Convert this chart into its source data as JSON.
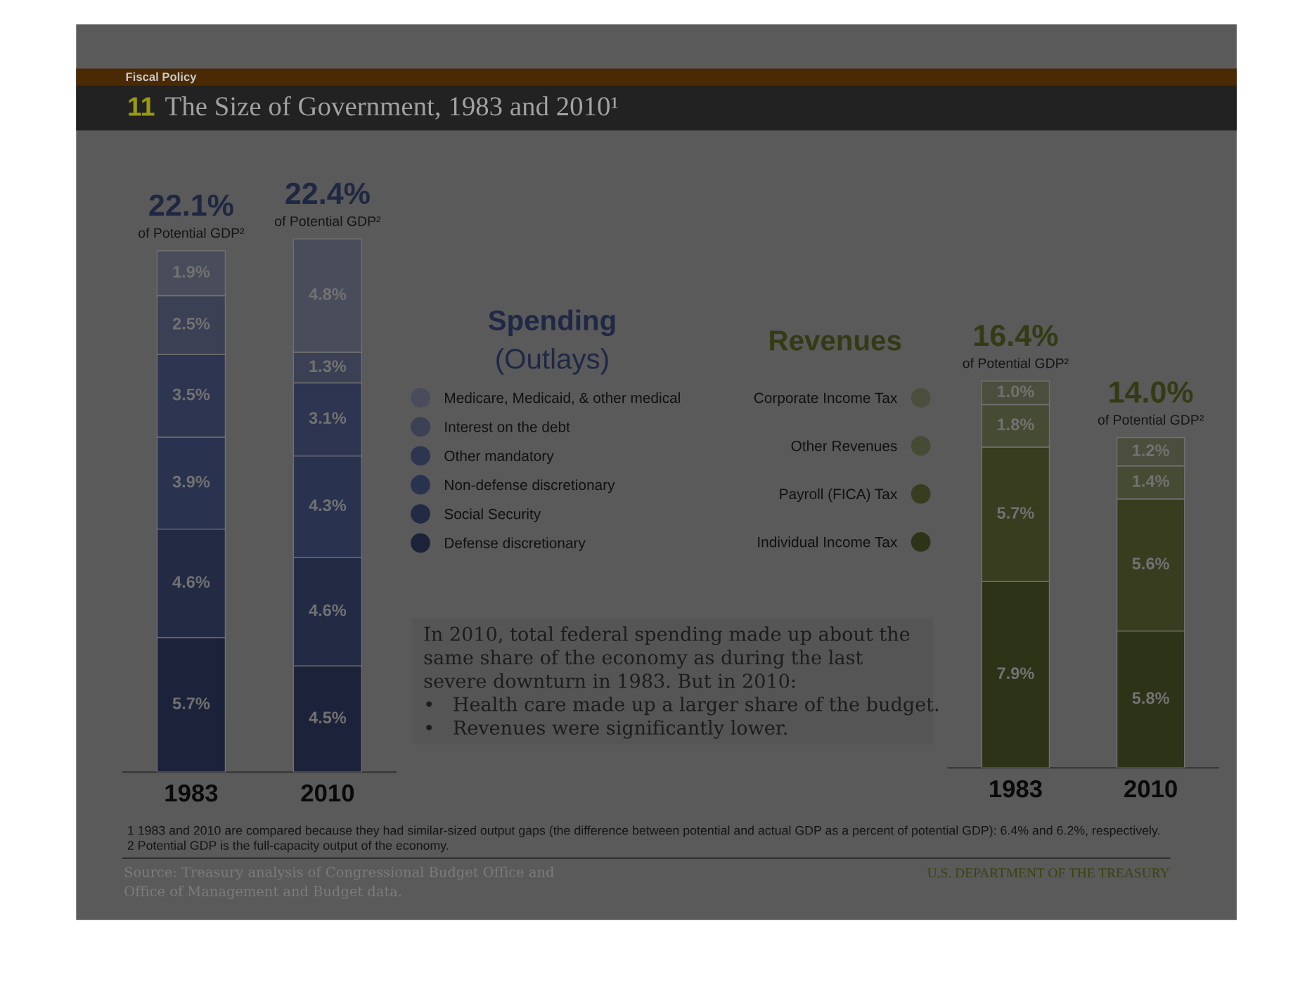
{
  "chart_data": [
    {
      "type": "bar",
      "stacked": true,
      "title": "11 The Size of Government, 1983 and 2010¹",
      "subtitle": "Fiscal Policy",
      "legend_title": "Spending (Outlays)",
      "legend": "right",
      "tick_labels": "x",
      "categories": [
        "1983",
        "2010"
      ],
      "series": [
        {
          "name": "Defense discretionary",
          "color": "#1c2239",
          "values": [
            5.7,
            4.5
          ],
          "value_labels": [
            "5.7%",
            "4.5%"
          ]
        },
        {
          "name": "Social Security",
          "color": "#222a44",
          "values": [
            4.6,
            4.6
          ],
          "value_labels": [
            "4.6%",
            "4.6%"
          ]
        },
        {
          "name": "Non-defense discretionary",
          "color": "#293350",
          "values": [
            3.9,
            4.3
          ],
          "value_labels": [
            "3.9%",
            "4.3%"
          ]
        },
        {
          "name": "Other mandatory",
          "color": "#2e3550",
          "values": [
            3.5,
            3.1
          ],
          "value_labels": [
            "3.5%",
            "3.1%"
          ]
        },
        {
          "name": "Interest on the debt",
          "color": "#3b4054",
          "values": [
            2.5,
            1.3
          ],
          "value_labels": [
            "2.5%",
            "1.3%"
          ]
        },
        {
          "name": "Medicare, Medicaid, & other medical",
          "color": "#484c5b",
          "values": [
            1.9,
            4.8
          ],
          "value_labels": [
            "1.9%",
            "4.8%"
          ]
        }
      ],
      "totals": [
        "22.1%",
        "22.4%"
      ],
      "annotations": [
        "of Potential GDP²",
        "of Potential GDP²",
        "In 2010, total federal spending made up about the same share of the economy as during the last severe downturn in 1983. But in 2010:",
        "• Health care made up a larger share of the budget.",
        "• Revenues were significantly lower."
      ]
    },
    {
      "type": "bar",
      "stacked": true,
      "legend_title": "Revenues",
      "legend": "left",
      "tick_labels": "x",
      "categories": [
        "1983",
        "2010"
      ],
      "series": [
        {
          "name": "Individual Income Tax",
          "color": "#2d3317",
          "values": [
            7.9,
            5.8
          ],
          "value_labels": [
            "7.9%",
            "5.8%"
          ]
        },
        {
          "name": "Payroll (FICA) Tax",
          "color": "#373d1e",
          "values": [
            5.7,
            5.6
          ],
          "value_labels": [
            "5.7%",
            "5.6%"
          ]
        },
        {
          "name": "Other Revenues",
          "color": "#464b33",
          "values": [
            1.8,
            1.4
          ],
          "value_labels": [
            "1.8%",
            "1.4%"
          ]
        },
        {
          "name": "Corporate Income Tax",
          "color": "#4b4e3c",
          "values": [
            1.0,
            1.2
          ],
          "value_labels": [
            "1.0%",
            "1.2%"
          ]
        }
      ],
      "totals": [
        "16.4%",
        "14.0%"
      ],
      "annotations": [
        "of Potential GDP²",
        "of Potential GDP²",
        "1 1983 and 2010 are compared because they had similar-sized output gaps (the difference between potential and actual GDP as a percent of potential GDP): 6.4% and 6.2%, respectively.",
        "2 Potential GDP is the full-capacity output of the economy.",
        "Source: Treasury analysis of Congressional Budget Office and Office of Management and Budget data.",
        "U.S. DEPARTMENT OF THE TREASURY"
      ]
    }
  ]
}
